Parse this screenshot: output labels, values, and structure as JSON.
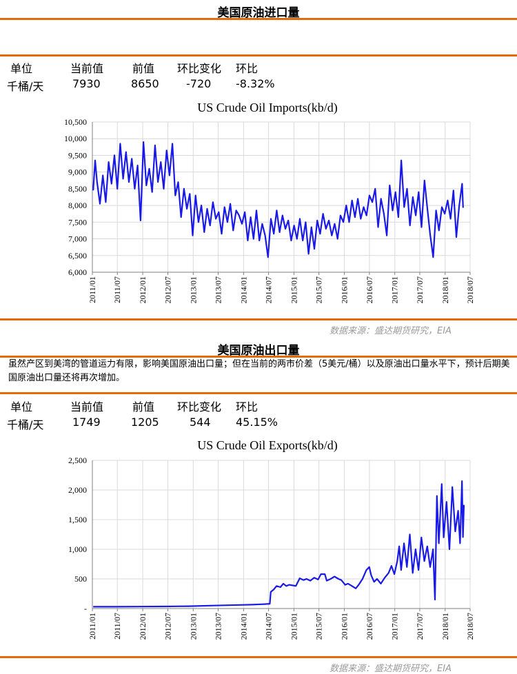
{
  "imports_section": {
    "title": "美国原油进口量",
    "headers": [
      "单位",
      "当前值",
      "前值",
      "环比变化",
      "环比"
    ],
    "values": [
      "千桶/天",
      "7930",
      "8650",
      "-720",
      "-8.32%"
    ],
    "source": "数据来源：盛达期货研究，EIA"
  },
  "exports_section": {
    "title": "美国原油出口量",
    "note": "虽然产区到美湾的管道运力有限，影响美国原油出口量；但在当前的两市价差（5美元/桶）以及原油出口量水平下，预计后期美国原油出口量还将再次增加。",
    "headers": [
      "单位",
      "当前值",
      "前值",
      "环比变化",
      "环比"
    ],
    "values": [
      "千桶/天",
      "1749",
      "1205",
      "544",
      "45.15%"
    ],
    "source": "数据来源：盛达期货研究，EIA"
  },
  "colors": {
    "accent": "#e36c09",
    "series": "#1a1ae6",
    "grid": "#d9d9d9"
  },
  "chart_data": [
    {
      "type": "line",
      "title": "US Crude Oil Imports(kb/d)",
      "x_ticks": [
        "2011/01",
        "2011/07",
        "2012/01",
        "2012/07",
        "2013/01",
        "2013/07",
        "2014/01",
        "2014/07",
        "2015/01",
        "2015/07",
        "2016/01",
        "2016/07",
        "2017/01",
        "2017/07",
        "2018/01",
        "2018/07"
      ],
      "y_ticks": [
        "6,000",
        "6,500",
        "7,000",
        "7,500",
        "8,000",
        "8,500",
        "9,000",
        "9,500",
        "10,000",
        "10,500"
      ],
      "ylim": [
        6000,
        10500
      ],
      "xlim": [
        "2011-01-01",
        "2018-07-01"
      ],
      "grid": true,
      "series": [
        {
          "points": [
            [
              "2011-01-07",
              8450
            ],
            [
              "2011-01-21",
              9350
            ],
            [
              "2011-02-04",
              8700
            ],
            [
              "2011-02-25",
              8050
            ],
            [
              "2011-03-18",
              8900
            ],
            [
              "2011-04-08",
              8100
            ],
            [
              "2011-04-29",
              9300
            ],
            [
              "2011-05-20",
              8650
            ],
            [
              "2011-06-10",
              9500
            ],
            [
              "2011-07-01",
              8500
            ],
            [
              "2011-07-22",
              9850
            ],
            [
              "2011-08-12",
              8800
            ],
            [
              "2011-09-02",
              9600
            ],
            [
              "2011-09-23",
              8700
            ],
            [
              "2011-10-14",
              9400
            ],
            [
              "2011-11-04",
              8500
            ],
            [
              "2011-11-25",
              9200
            ],
            [
              "2011-12-16",
              7550
            ],
            [
              "2012-01-06",
              9900
            ],
            [
              "2012-01-27",
              8600
            ],
            [
              "2012-02-17",
              9100
            ],
            [
              "2012-03-09",
              8400
            ],
            [
              "2012-03-30",
              9800
            ],
            [
              "2012-04-20",
              8700
            ],
            [
              "2012-05-11",
              9300
            ],
            [
              "2012-06-01",
              8500
            ],
            [
              "2012-06-22",
              9650
            ],
            [
              "2012-07-13",
              8900
            ],
            [
              "2012-08-03",
              9850
            ],
            [
              "2012-08-24",
              8300
            ],
            [
              "2012-09-14",
              8700
            ],
            [
              "2012-10-05",
              7650
            ],
            [
              "2012-10-26",
              8500
            ],
            [
              "2012-11-16",
              7900
            ],
            [
              "2012-12-07",
              8350
            ],
            [
              "2012-12-28",
              7100
            ],
            [
              "2013-01-18",
              8300
            ],
            [
              "2013-02-08",
              7500
            ],
            [
              "2013-03-01",
              8000
            ],
            [
              "2013-03-22",
              7200
            ],
            [
              "2013-04-12",
              7900
            ],
            [
              "2013-05-03",
              7400
            ],
            [
              "2013-05-24",
              8100
            ],
            [
              "2013-06-14",
              7600
            ],
            [
              "2013-07-05",
              7800
            ],
            [
              "2013-07-26",
              7150
            ],
            [
              "2013-08-16",
              7950
            ],
            [
              "2013-09-06",
              7500
            ],
            [
              "2013-09-27",
              8050
            ],
            [
              "2013-10-18",
              7250
            ],
            [
              "2013-11-08",
              7850
            ],
            [
              "2013-11-29",
              7700
            ],
            [
              "2013-12-20",
              7450
            ],
            [
              "2014-01-10",
              7800
            ],
            [
              "2014-01-31",
              6950
            ],
            [
              "2014-02-21",
              7650
            ],
            [
              "2014-03-14",
              7000
            ],
            [
              "2014-04-04",
              7850
            ],
            [
              "2014-04-25",
              6950
            ],
            [
              "2014-05-16",
              7450
            ],
            [
              "2014-06-06",
              7100
            ],
            [
              "2014-06-27",
              6450
            ],
            [
              "2014-07-18",
              7600
            ],
            [
              "2014-08-08",
              7150
            ],
            [
              "2014-08-29",
              7850
            ],
            [
              "2014-09-19",
              7200
            ],
            [
              "2014-10-10",
              7700
            ],
            [
              "2014-10-31",
              7300
            ],
            [
              "2014-11-21",
              7550
            ],
            [
              "2014-12-12",
              6950
            ],
            [
              "2015-01-02",
              7400
            ],
            [
              "2015-01-23",
              7000
            ],
            [
              "2015-02-13",
              7600
            ],
            [
              "2015-03-06",
              6950
            ],
            [
              "2015-03-27",
              7500
            ],
            [
              "2015-04-17",
              6550
            ],
            [
              "2015-05-08",
              7350
            ],
            [
              "2015-05-29",
              6700
            ],
            [
              "2015-06-19",
              7550
            ],
            [
              "2015-07-10",
              7150
            ],
            [
              "2015-07-31",
              7750
            ],
            [
              "2015-08-21",
              7300
            ],
            [
              "2015-09-11",
              7550
            ],
            [
              "2015-10-02",
              7100
            ],
            [
              "2015-10-23",
              7450
            ],
            [
              "2015-11-13",
              7000
            ],
            [
              "2015-12-04",
              7700
            ],
            [
              "2015-12-25",
              7500
            ],
            [
              "2016-01-15",
              8000
            ],
            [
              "2016-02-05",
              7500
            ],
            [
              "2016-02-26",
              8150
            ],
            [
              "2016-03-18",
              7650
            ],
            [
              "2016-04-08",
              8200
            ],
            [
              "2016-04-29",
              7600
            ],
            [
              "2016-05-20",
              7950
            ],
            [
              "2016-06-10",
              7700
            ],
            [
              "2016-07-01",
              8300
            ],
            [
              "2016-07-22",
              8100
            ],
            [
              "2016-08-12",
              8500
            ],
            [
              "2016-09-02",
              7350
            ],
            [
              "2016-09-23",
              8200
            ],
            [
              "2016-10-14",
              7750
            ],
            [
              "2016-11-04",
              7100
            ],
            [
              "2016-11-25",
              8600
            ],
            [
              "2016-12-16",
              7850
            ],
            [
              "2017-01-06",
              8400
            ],
            [
              "2017-01-27",
              7650
            ],
            [
              "2017-02-17",
              9350
            ],
            [
              "2017-03-10",
              7950
            ],
            [
              "2017-03-31",
              8500
            ],
            [
              "2017-04-21",
              7400
            ],
            [
              "2017-05-12",
              8250
            ],
            [
              "2017-06-02",
              7700
            ],
            [
              "2017-06-23",
              8400
            ],
            [
              "2017-07-14",
              7350
            ],
            [
              "2017-08-04",
              8750
            ],
            [
              "2017-08-25",
              7900
            ],
            [
              "2017-09-15",
              7100
            ],
            [
              "2017-10-06",
              6450
            ],
            [
              "2017-10-27",
              7850
            ],
            [
              "2017-11-17",
              7250
            ],
            [
              "2017-12-08",
              7950
            ],
            [
              "2017-12-29",
              7750
            ],
            [
              "2018-01-19",
              8150
            ],
            [
              "2018-02-09",
              7600
            ],
            [
              "2018-03-02",
              8450
            ],
            [
              "2018-03-23",
              7050
            ],
            [
              "2018-04-13",
              8000
            ],
            [
              "2018-05-04",
              8650
            ],
            [
              "2018-05-11",
              7930
            ]
          ]
        }
      ]
    },
    {
      "type": "line",
      "title": "US Crude Oil Exports(kb/d)",
      "x_ticks": [
        "2011/01",
        "2011/07",
        "2012/01",
        "2012/07",
        "2013/01",
        "2013/07",
        "2014/01",
        "2014/07",
        "2015/01",
        "2015/07",
        "2016/01",
        "2016/07",
        "2017/01",
        "2017/07",
        "2018/01",
        "2018/07"
      ],
      "y_ticks": [
        "-",
        "500",
        "1,000",
        "1,500",
        "2,000",
        "2,500"
      ],
      "ylim": [
        0,
        2500
      ],
      "xlim": [
        "2011-01-01",
        "2018-07-01"
      ],
      "grid": true,
      "series": [
        {
          "points": [
            [
              "2011-01-07",
              30
            ],
            [
              "2011-06-01",
              30
            ],
            [
              "2011-12-01",
              32
            ],
            [
              "2012-06-01",
              35
            ],
            [
              "2012-12-01",
              40
            ],
            [
              "2013-06-01",
              50
            ],
            [
              "2013-12-01",
              60
            ],
            [
              "2014-03-01",
              65
            ],
            [
              "2014-06-01",
              75
            ],
            [
              "2014-07-10",
              80
            ],
            [
              "2014-07-17",
              280
            ],
            [
              "2014-08-07",
              320
            ],
            [
              "2014-08-28",
              380
            ],
            [
              "2014-09-25",
              360
            ],
            [
              "2014-10-16",
              420
            ],
            [
              "2014-11-06",
              380
            ],
            [
              "2014-11-27",
              400
            ],
            [
              "2014-12-25",
              390
            ],
            [
              "2015-01-15",
              380
            ],
            [
              "2015-02-12",
              510
            ],
            [
              "2015-03-12",
              480
            ],
            [
              "2015-04-02",
              500
            ],
            [
              "2015-04-30",
              470
            ],
            [
              "2015-05-28",
              520
            ],
            [
              "2015-06-25",
              490
            ],
            [
              "2015-07-16",
              580
            ],
            [
              "2015-08-13",
              580
            ],
            [
              "2015-08-27",
              470
            ],
            [
              "2015-09-24",
              500
            ],
            [
              "2015-10-22",
              540
            ],
            [
              "2015-11-19",
              500
            ],
            [
              "2015-12-10",
              480
            ],
            [
              "2016-01-07",
              400
            ],
            [
              "2016-01-28",
              420
            ],
            [
              "2016-02-25",
              380
            ],
            [
              "2016-03-24",
              340
            ],
            [
              "2016-04-14",
              400
            ],
            [
              "2016-05-12",
              500
            ],
            [
              "2016-06-09",
              650
            ],
            [
              "2016-06-30",
              700
            ],
            [
              "2016-07-14",
              560
            ],
            [
              "2016-08-04",
              450
            ],
            [
              "2016-08-25",
              500
            ],
            [
              "2016-09-22",
              420
            ],
            [
              "2016-10-20",
              520
            ],
            [
              "2016-11-17",
              600
            ],
            [
              "2016-12-08",
              720
            ],
            [
              "2016-12-29",
              580
            ],
            [
              "2017-01-19",
              800
            ],
            [
              "2017-02-02",
              1050
            ],
            [
              "2017-02-16",
              650
            ],
            [
              "2017-03-09",
              1100
            ],
            [
              "2017-03-30",
              700
            ],
            [
              "2017-04-20",
              1250
            ],
            [
              "2017-05-11",
              600
            ],
            [
              "2017-06-01",
              1000
            ],
            [
              "2017-06-22",
              650
            ],
            [
              "2017-07-13",
              1200
            ],
            [
              "2017-08-03",
              800
            ],
            [
              "2017-08-24",
              1050
            ],
            [
              "2017-09-14",
              700
            ],
            [
              "2017-10-05",
              1000
            ],
            [
              "2017-10-19",
              150
            ],
            [
              "2017-11-02",
              1900
            ],
            [
              "2017-11-16",
              1100
            ],
            [
              "2017-12-07",
              2100
            ],
            [
              "2017-12-21",
              1200
            ],
            [
              "2018-01-11",
              1800
            ],
            [
              "2018-02-01",
              1000
            ],
            [
              "2018-02-22",
              2050
            ],
            [
              "2018-03-15",
              1300
            ],
            [
              "2018-04-05",
              1650
            ],
            [
              "2018-04-19",
              1100
            ],
            [
              "2018-05-03",
              2150
            ],
            [
              "2018-05-10",
              1205
            ],
            [
              "2018-05-17",
              1749
            ]
          ]
        }
      ]
    }
  ]
}
